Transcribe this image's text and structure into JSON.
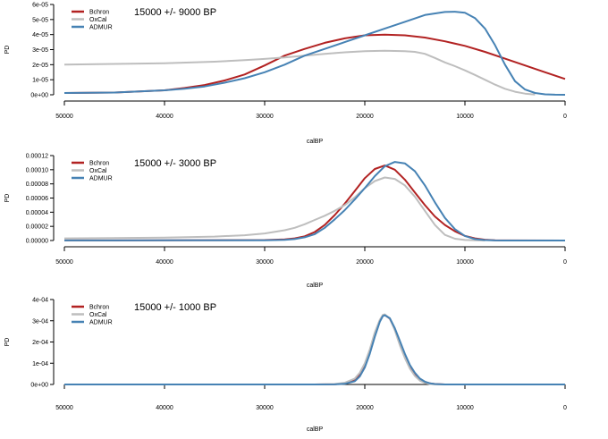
{
  "chart_data": [
    {
      "type": "line",
      "title": "",
      "annotation": "15000 +/- 9000 BP",
      "xlabel": "calBP",
      "ylabel": "PD",
      "xlim": [
        50000,
        0
      ],
      "ylim": [
        0,
        6e-05
      ],
      "x_ticks": [
        50000,
        40000,
        30000,
        20000,
        10000,
        0
      ],
      "x_tick_labels": [
        "50000",
        "40000",
        "30000",
        "20000",
        "10000",
        "0"
      ],
      "y_ticks": [
        0,
        1e-05,
        2e-05,
        3e-05,
        4e-05,
        5e-05,
        6e-05
      ],
      "y_tick_labels": [
        "0e+00",
        "1e-05",
        "2e-05",
        "3e-05",
        "4e-05",
        "5e-05",
        "6e-05"
      ],
      "grid": false,
      "legend": "top-left",
      "series": [
        {
          "name": "Bchron",
          "color": "#b22222",
          "x": [
            50000,
            45000,
            40000,
            38000,
            36000,
            34000,
            32000,
            30000,
            28000,
            26000,
            24000,
            22000,
            20000,
            18000,
            16000,
            14000,
            12000,
            10000,
            8000,
            6000,
            4000,
            2000,
            0
          ],
          "y": [
            1.2e-06,
            1.5e-06,
            3e-06,
            4.5e-06,
            6.5e-06,
            9.5e-06,
            1.35e-05,
            1.95e-05,
            2.6e-05,
            3.05e-05,
            3.45e-05,
            3.75e-05,
            3.95e-05,
            4e-05,
            3.95e-05,
            3.8e-05,
            3.55e-05,
            3.25e-05,
            2.85e-05,
            2.4e-05,
            1.95e-05,
            1.5e-05,
            1.05e-05
          ]
        },
        {
          "name": "OxCal",
          "color": "#bebebe",
          "x": [
            50000,
            45000,
            40000,
            35000,
            32000,
            30000,
            28000,
            26000,
            24000,
            22000,
            20000,
            18000,
            16000,
            15000,
            14000,
            13000,
            12000,
            11000,
            10000,
            9000,
            8000,
            7000,
            6000,
            5000,
            4000,
            3000
          ],
          "y": [
            2e-05,
            2.05e-05,
            2.1e-05,
            2.2e-05,
            2.3e-05,
            2.38e-05,
            2.48e-05,
            2.6e-05,
            2.72e-05,
            2.82e-05,
            2.9e-05,
            2.93e-05,
            2.9e-05,
            2.85e-05,
            2.72e-05,
            2.45e-05,
            2.15e-05,
            1.9e-05,
            1.62e-05,
            1.32e-05,
            1e-05,
            6.8e-06,
            4e-06,
            2e-06,
            8e-07,
            2e-07
          ]
        },
        {
          "name": "ADMUR",
          "color": "#4682b4",
          "x": [
            50000,
            45000,
            40000,
            38000,
            36000,
            34000,
            32000,
            30000,
            28000,
            26000,
            24000,
            22000,
            20000,
            18000,
            16000,
            14000,
            12000,
            11000,
            10000,
            9000,
            8000,
            7000,
            6000,
            5000,
            4000,
            3000,
            2000,
            1000,
            0
          ],
          "y": [
            1.2e-06,
            1.5e-06,
            3e-06,
            4e-06,
            5.5e-06,
            8e-06,
            1.1e-05,
            1.5e-05,
            2e-05,
            2.6e-05,
            3.05e-05,
            3.5e-05,
            3.95e-05,
            4.4e-05,
            4.85e-05,
            5.3e-05,
            5.5e-05,
            5.52e-05,
            5.45e-05,
            5.1e-05,
            4.4e-05,
            3.3e-05,
            2e-05,
            9e-06,
            3.5e-06,
            1.2e-06,
            3e-07,
            5e-08,
            1e-08
          ]
        }
      ]
    },
    {
      "type": "line",
      "title": "",
      "annotation": "15000 +/- 3000 BP",
      "xlabel": "calBP",
      "ylabel": "PD",
      "xlim": [
        50000,
        0
      ],
      "ylim": [
        0,
        0.00012
      ],
      "x_ticks": [
        50000,
        40000,
        30000,
        20000,
        10000,
        0
      ],
      "x_tick_labels": [
        "50000",
        "40000",
        "30000",
        "20000",
        "10000",
        "0"
      ],
      "y_ticks": [
        0,
        2e-05,
        4e-05,
        6e-05,
        8e-05,
        0.0001,
        0.00012
      ],
      "y_tick_labels": [
        "0.00000",
        "0.00002",
        "0.00004",
        "0.00006",
        "0.00008",
        "0.00010",
        "0.00012"
      ],
      "grid": false,
      "legend": "top-left",
      "series": [
        {
          "name": "Bchron",
          "color": "#b22222",
          "x": [
            50000,
            40000,
            30000,
            28000,
            27000,
            26000,
            25000,
            24000,
            23000,
            22000,
            21000,
            20000,
            19000,
            18000,
            17000,
            16000,
            15000,
            14000,
            13000,
            12000,
            11000,
            10000,
            9000,
            8000,
            7000,
            6000,
            0
          ],
          "y": [
            1e-07,
            3e-07,
            6e-07,
            1.5e-06,
            3e-06,
            6e-06,
            1.2e-05,
            2.2e-05,
            3.6e-05,
            5.2e-05,
            7e-05,
            8.8e-05,
            0.000101,
            0.000106,
            0.0001,
            8.6e-05,
            6.8e-05,
            5e-05,
            3.4e-05,
            2.2e-05,
            1.3e-05,
            6.5e-06,
            3e-06,
            1.2e-06,
            4e-07,
            1e-07,
            0
          ]
        },
        {
          "name": "OxCal",
          "color": "#bebebe",
          "x": [
            50000,
            40000,
            35000,
            32000,
            30000,
            28000,
            27000,
            26000,
            25000,
            24000,
            23000,
            22000,
            21000,
            20000,
            19000,
            18000,
            17000,
            16000,
            15000,
            14000,
            13000,
            12000,
            11000,
            10000,
            9000,
            8000
          ],
          "y": [
            3e-06,
            4e-06,
            5.5e-06,
            7.5e-06,
            1e-05,
            1.45e-05,
            1.8e-05,
            2.3e-05,
            2.9e-05,
            3.5e-05,
            4.2e-05,
            5e-05,
            6.1e-05,
            7.4e-05,
            8.4e-05,
            8.9e-05,
            8.7e-05,
            7.8e-05,
            6.2e-05,
            4.2e-05,
            2.2e-05,
            8e-06,
            2.5e-06,
            8e-07,
            2e-07,
            0
          ]
        },
        {
          "name": "ADMUR",
          "color": "#4682b4",
          "x": [
            50000,
            40000,
            30000,
            28000,
            27000,
            26000,
            25000,
            24000,
            23000,
            22000,
            21000,
            20000,
            19000,
            18000,
            17000,
            16000,
            15000,
            14000,
            13000,
            12000,
            11000,
            10000,
            9000,
            8000,
            7000,
            6000,
            0
          ],
          "y": [
            1e-07,
            2e-07,
            4e-07,
            1e-06,
            2e-06,
            4.5e-06,
            9e-06,
            1.8e-05,
            3e-05,
            4.3e-05,
            5.8e-05,
            7.4e-05,
            9.1e-05,
            0.000105,
            0.000111,
            0.000109,
            9.8e-05,
            7.8e-05,
            5.4e-05,
            3.2e-05,
            1.6e-05,
            6.5e-06,
            2e-06,
            6e-07,
            1.5e-07,
            0,
            0
          ]
        }
      ]
    },
    {
      "type": "line",
      "title": "",
      "annotation": "15000 +/- 1000 BP",
      "xlabel": "calBP",
      "ylabel": "PD",
      "xlim": [
        50000,
        0
      ],
      "ylim": [
        0,
        0.0004
      ],
      "x_ticks": [
        50000,
        40000,
        30000,
        20000,
        10000,
        0
      ],
      "x_tick_labels": [
        "50000",
        "40000",
        "30000",
        "20000",
        "10000",
        "0"
      ],
      "y_ticks": [
        0,
        0.0001,
        0.0002,
        0.0003,
        0.0004
      ],
      "y_tick_labels": [
        "0e+00",
        "1e-04",
        "2e-04",
        "3e-04",
        "4e-04"
      ],
      "grid": false,
      "legend": "top-left",
      "series": [
        {
          "name": "Bchron",
          "color": "#b22222",
          "x": [
            50000,
            25000,
            23000,
            22000,
            21000,
            20500,
            20000,
            19500,
            19000,
            18500,
            18200,
            18000,
            17500,
            17000,
            16500,
            16000,
            15500,
            15000,
            14500,
            14000,
            13500,
            13000,
            12000,
            0
          ],
          "y": [
            0,
            0,
            1e-06,
            5e-06,
            2e-05,
            4.5e-05,
            9e-05,
            0.000155,
            0.000235,
            0.0003,
            0.000325,
            0.000328,
            0.00031,
            0.00026,
            0.000195,
            0.000135,
            8.5e-05,
            5e-05,
            2.5e-05,
            1.2e-05,
            5e-06,
            2e-06,
            0,
            0
          ]
        },
        {
          "name": "OxCal",
          "color": "#bebebe",
          "x": [
            50000,
            25000,
            23000,
            22000,
            21000,
            20500,
            20000,
            19500,
            19000,
            18500,
            18200,
            18000,
            17500,
            17000,
            16500,
            16000,
            15500,
            15000,
            14500,
            14000,
            13500,
            13000,
            12000,
            0
          ],
          "y": [
            0,
            0,
            2e-06,
            8e-06,
            2.8e-05,
            5.5e-05,
            0.0001,
            0.000165,
            0.000245,
            0.000305,
            0.000328,
            0.00033,
            0.00031,
            0.000255,
            0.000185,
            0.000125,
            7.5e-05,
            4e-05,
            1.8e-05,
            7e-06,
            2e-06,
            5e-07,
            0,
            0
          ]
        },
        {
          "name": "ADMUR",
          "color": "#4682b4",
          "x": [
            50000,
            25000,
            23000,
            22000,
            21000,
            20500,
            20000,
            19500,
            19000,
            18500,
            18200,
            18000,
            17500,
            17000,
            16500,
            16000,
            15500,
            15000,
            14500,
            14000,
            13500,
            13000,
            12000,
            0
          ],
          "y": [
            0,
            0,
            5e-07,
            3e-06,
            1.5e-05,
            3.8e-05,
            8e-05,
            0.000145,
            0.000225,
            0.000295,
            0.000322,
            0.000326,
            0.000312,
            0.000265,
            0.000205,
            0.000145,
            9.2e-05,
            5.5e-05,
            2.8e-05,
            1.3e-05,
            5.5e-06,
            2e-06,
            0,
            0
          ]
        }
      ]
    }
  ]
}
